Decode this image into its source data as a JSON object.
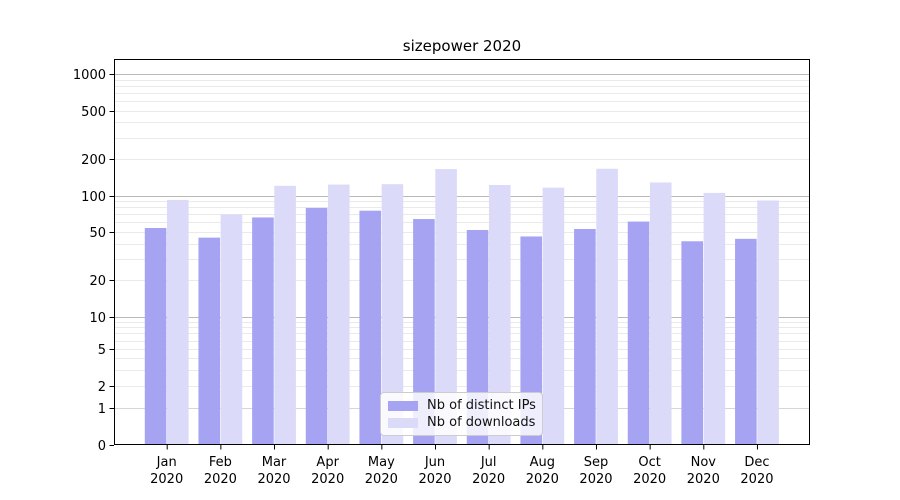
{
  "title": "sizepower 2020",
  "legend": {
    "items": [
      {
        "label": "Nb of distinct IPs",
        "color": "#a5a3f2"
      },
      {
        "label": "Nb of downloads",
        "color": "#dbdaf9"
      }
    ]
  },
  "axes": {
    "y_tick_labels": [
      "0",
      "1",
      "2",
      "5",
      "10",
      "20",
      "50",
      "100",
      "200",
      "500",
      "1000"
    ],
    "x_tick_labels_line1": [
      "Jan",
      "Feb",
      "Mar",
      "Apr",
      "May",
      "Jun",
      "Jul",
      "Aug",
      "Sep",
      "Oct",
      "Nov",
      "Dec"
    ],
    "x_tick_labels_line2": [
      "2020",
      "2020",
      "2020",
      "2020",
      "2020",
      "2020",
      "2020",
      "2020",
      "2020",
      "2020",
      "2020",
      "2020"
    ]
  },
  "chart_data": {
    "type": "bar",
    "title": "sizepower 2020",
    "categories": [
      "Jan 2020",
      "Feb 2020",
      "Mar 2020",
      "Apr 2020",
      "May 2020",
      "Jun 2020",
      "Jul 2020",
      "Aug 2020",
      "Sep 2020",
      "Oct 2020",
      "Nov 2020",
      "Dec 2020"
    ],
    "series": [
      {
        "name": "Nb of distinct IPs",
        "color": "#a5a3f2",
        "values": [
          54,
          45,
          66,
          79,
          75,
          64,
          52,
          46,
          53,
          61,
          42,
          44
        ]
      },
      {
        "name": "Nb of downloads",
        "color": "#dbdaf9",
        "values": [
          92,
          70,
          120,
          123,
          124,
          165,
          122,
          116,
          166,
          128,
          105,
          91
        ]
      }
    ],
    "xlabel": "",
    "ylabel": "",
    "yscale": "symlog",
    "y_ticks": [
      0,
      1,
      2,
      5,
      10,
      20,
      50,
      100,
      200,
      500,
      1000
    ],
    "ylim": [
      0,
      1330
    ],
    "grid": "horizontal major gridlines at powers of 10 plus faint log minor gridlines",
    "legend_position": "lower center"
  },
  "colors": {
    "bar_ips": "#a5a3f2",
    "bar_downloads": "#dbdaf9",
    "grid_major": "#b9b9b9",
    "grid_unit": "#d6d6d6",
    "grid_minor": "#eaeaea",
    "axis": "#000000",
    "text": "#000000",
    "background": "#ffffff"
  }
}
